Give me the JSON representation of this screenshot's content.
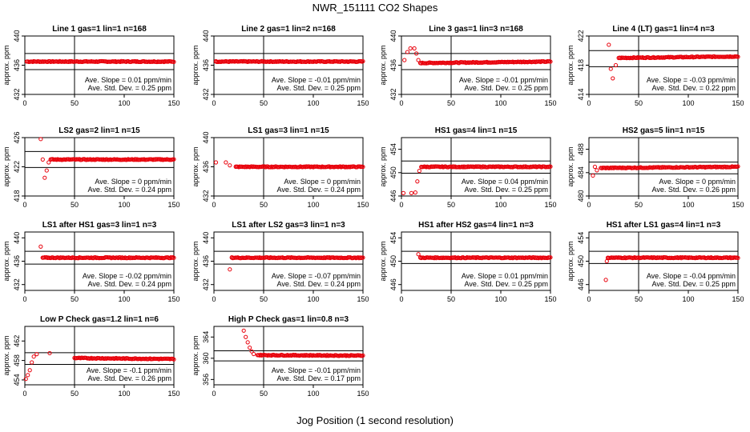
{
  "figure": {
    "title": "NWR_151111  CO2 Shapes",
    "xlabel": "Jog Position (1 second resolution)"
  },
  "colors": {
    "points": "#e8000b",
    "axis": "#000000",
    "background": "#ffffff"
  },
  "chart_data": [
    {
      "type": "scatter",
      "title": "Line 1 gas=1 lin=1 n=168",
      "ylabel": "approx. ppm",
      "xlim": [
        0,
        150
      ],
      "ylim": [
        432,
        440
      ],
      "xticks": [
        0,
        50,
        100,
        150
      ],
      "yticks": [
        432,
        436,
        440
      ],
      "hlines": [
        437.6,
        435.4
      ],
      "vline": 50,
      "slope": "Ave. Slope = 0.01  ppm/min",
      "stddev": "Ave. Std. Dev. = 0.25  ppm",
      "x": [
        2,
        150
      ],
      "y": [
        436.5,
        436.5
      ]
    },
    {
      "type": "scatter",
      "title": "Line 2 gas=1 lin=2 n=168",
      "ylabel": "approx. ppm",
      "xlim": [
        0,
        150
      ],
      "ylim": [
        432,
        440
      ],
      "xticks": [
        0,
        50,
        100,
        150
      ],
      "yticks": [
        432,
        436,
        440
      ],
      "hlines": [
        437.6,
        435.4
      ],
      "vline": 50,
      "slope": "Ave. Slope = -0.01  ppm/min",
      "stddev": "Ave. Std. Dev. = 0.25  ppm",
      "x": [
        2,
        150
      ],
      "y": [
        436.5,
        436.5
      ]
    },
    {
      "type": "scatter",
      "title": "Line 3 gas=1 lin=3 n=168",
      "ylabel": "approx. ppm",
      "xlim": [
        0,
        150
      ],
      "ylim": [
        432,
        440
      ],
      "xticks": [
        0,
        50,
        100,
        150
      ],
      "yticks": [
        432,
        436,
        440
      ],
      "hlines": [
        437.6,
        435.4
      ],
      "vline": 50,
      "slope": "Ave. Slope = -0.01  ppm/min",
      "stddev": "Ave. Std. Dev. = 0.25  ppm",
      "x": [
        3,
        6,
        9,
        13,
        15,
        17,
        19,
        150
      ],
      "y": [
        436.7,
        437.8,
        438.3,
        438.3,
        437.6,
        436.7,
        436.3,
        436.5
      ]
    },
    {
      "type": "scatter",
      "title": "Line 4 (LT) gas=1 lin=4 n=3",
      "ylabel": "approx. ppm",
      "xlim": [
        0,
        150
      ],
      "ylim": [
        414,
        422
      ],
      "xticks": [
        0,
        50,
        100,
        150
      ],
      "yticks": [
        414,
        418,
        422
      ],
      "hlines": [
        420.0,
        417.8
      ],
      "vline": 50,
      "slope": "Ave. Slope = -0.03  ppm/min",
      "stddev": "Ave. Std. Dev. = 0.22  ppm",
      "x": [
        20,
        22,
        24,
        27,
        30,
        150
      ],
      "y": [
        420.8,
        417.5,
        416.2,
        418.0,
        419.0,
        419.2
      ]
    },
    {
      "type": "scatter",
      "title": "LS2 gas=2 lin=1 n=15",
      "ylabel": "approx. ppm",
      "xlim": [
        0,
        150
      ],
      "ylim": [
        418,
        426
      ],
      "xticks": [
        0,
        50,
        100,
        150
      ],
      "yticks": [
        418,
        422,
        426
      ],
      "hlines": [
        424.1,
        421.9
      ],
      "vline": 50,
      "slope": "Ave. Slope = 0  ppm/min",
      "stddev": "Ave. Std. Dev. = 0.24  ppm",
      "x": [
        16,
        18,
        20,
        22,
        24,
        26,
        150
      ],
      "y": [
        425.8,
        423.0,
        420.5,
        421.5,
        422.6,
        423.0,
        423.0
      ]
    },
    {
      "type": "scatter",
      "title": "LS1 gas=3 lin=1 n=15",
      "ylabel": "approx. ppm",
      "xlim": [
        0,
        150
      ],
      "ylim": [
        432,
        440
      ],
      "xticks": [
        0,
        50,
        100,
        150
      ],
      "yticks": [
        432,
        436,
        440
      ],
      "hlines": [],
      "vline": 50,
      "slope": "Ave. Slope = 0  ppm/min",
      "stddev": "Ave. Std. Dev. = 0.24  ppm",
      "x": [
        2,
        12,
        16,
        22,
        150
      ],
      "y": [
        436.6,
        436.6,
        436.2,
        436.0,
        436.0
      ]
    },
    {
      "type": "scatter",
      "title": "HS1 gas=4 lin=1 n=15",
      "ylabel": "approx. ppm",
      "xlim": [
        0,
        150
      ],
      "ylim": [
        446,
        456
      ],
      "xticks": [
        0,
        50,
        100,
        150
      ],
      "yticks": [
        446,
        450,
        454
      ],
      "hlines": [
        452.0,
        449.9
      ],
      "vline": 50,
      "slope": "Ave. Slope = 0.04  ppm/min",
      "stddev": "Ave. Std. Dev. = 0.25  ppm",
      "x": [
        2,
        10,
        14,
        16,
        18,
        20,
        150
      ],
      "y": [
        446.5,
        446.5,
        446.6,
        448.5,
        450.3,
        451.0,
        451.0
      ]
    },
    {
      "type": "scatter",
      "title": "HS2 gas=5 lin=1 n=15",
      "ylabel": "approx. ppm",
      "xlim": [
        0,
        150
      ],
      "ylim": [
        480,
        490
      ],
      "xticks": [
        0,
        50,
        100,
        150
      ],
      "yticks": [
        480,
        484,
        488
      ],
      "hlines": [
        485.8,
        483.8
      ],
      "vline": 50,
      "slope": "Ave. Slope = 0  ppm/min",
      "stddev": "Ave. Std. Dev. = 0.26  ppm",
      "x": [
        4,
        6,
        8,
        12,
        150
      ],
      "y": [
        483.5,
        485.0,
        484.4,
        484.8,
        485.0
      ]
    },
    {
      "type": "scatter",
      "title": "LS1 after HS1 gas=3 lin=1 n=3",
      "ylabel": "approx. ppm",
      "xlim": [
        0,
        150
      ],
      "ylim": [
        431,
        441
      ],
      "xticks": [
        0,
        50,
        100,
        150
      ],
      "yticks": [
        432,
        436,
        440
      ],
      "hlines": [
        437.7,
        435.5
      ],
      "vline": 50,
      "slope": "Ave. Slope = -0.02  ppm/min",
      "stddev": "Ave. Std. Dev. = 0.24  ppm",
      "x": [
        16,
        18,
        150
      ],
      "y": [
        438.5,
        436.6,
        436.6
      ]
    },
    {
      "type": "scatter",
      "title": "LS1 after LS2 gas=3 lin=1 n=3",
      "ylabel": "approx. ppm",
      "xlim": [
        0,
        150
      ],
      "ylim": [
        431,
        441
      ],
      "xticks": [
        0,
        50,
        100,
        150
      ],
      "yticks": [
        432,
        436,
        440
      ],
      "hlines": [
        437.7,
        435.5
      ],
      "vline": 50,
      "slope": "Ave. Slope = -0.07  ppm/min",
      "stddev": "Ave. Std. Dev. = 0.24  ppm",
      "x": [
        16,
        18,
        150
      ],
      "y": [
        434.6,
        436.6,
        436.6
      ]
    },
    {
      "type": "scatter",
      "title": "HS1 after HS2 gas=4 lin=1 n=3",
      "ylabel": "approx. ppm",
      "xlim": [
        0,
        150
      ],
      "ylim": [
        445,
        455
      ],
      "xticks": [
        0,
        50,
        100,
        150
      ],
      "yticks": [
        446,
        450,
        454
      ],
      "hlines": [
        451.7,
        449.6
      ],
      "vline": 50,
      "slope": "Ave. Slope = 0.01  ppm/min",
      "stddev": "Ave. Std. Dev. = 0.25  ppm",
      "x": [
        17,
        19,
        150
      ],
      "y": [
        451.2,
        450.6,
        450.6
      ]
    },
    {
      "type": "scatter",
      "title": "HS1 after LS1 gas=4 lin=1 n=3",
      "ylabel": "approx. ppm",
      "xlim": [
        0,
        150
      ],
      "ylim": [
        445,
        455
      ],
      "xticks": [
        0,
        50,
        100,
        150
      ],
      "yticks": [
        446,
        450,
        454
      ],
      "hlines": [
        451.7,
        449.6
      ],
      "vline": 50,
      "slope": "Ave. Slope = -0.04  ppm/min",
      "stddev": "Ave. Std. Dev. = 0.25  ppm",
      "x": [
        17,
        18,
        19,
        150
      ],
      "y": [
        446.8,
        450.0,
        450.6,
        450.6
      ]
    },
    {
      "type": "scatter",
      "title": "Low P Check gas=1.2 lin=1 n=6",
      "ylabel": "approx. ppm",
      "xlim": [
        0,
        150
      ],
      "ylim": [
        453,
        465
      ],
      "xticks": [
        0,
        50,
        100,
        150
      ],
      "yticks": [
        454,
        458,
        462
      ],
      "hlines": [
        459.6,
        457.2
      ],
      "vline": 50,
      "slope": "Ave. Slope = -0.1  ppm/min",
      "stddev": "Ave. Std. Dev. = 0.26  ppm",
      "x": [
        1,
        3,
        5,
        7,
        9,
        12,
        25,
        50,
        150
      ],
      "y": [
        454.2,
        455.0,
        456.0,
        457.6,
        458.8,
        459.3,
        459.5,
        458.5,
        458.3
      ]
    },
    {
      "type": "scatter",
      "title": "High P Check gas=1 lin=0.8 n=3",
      "ylabel": "approx. ppm",
      "xlim": [
        0,
        150
      ],
      "ylim": [
        355,
        366
      ],
      "xticks": [
        0,
        50,
        100,
        150
      ],
      "yticks": [
        356,
        360,
        364
      ],
      "hlines": [
        361.4,
        359.5
      ],
      "vline": 50,
      "slope": "Ave. Slope = -0.01  ppm/min",
      "stddev": "Ave. Std. Dev. = 0.17  ppm",
      "x": [
        30,
        32,
        34,
        36,
        38,
        40,
        44,
        150
      ],
      "y": [
        365.2,
        364.0,
        363.0,
        362.0,
        361.3,
        360.8,
        360.6,
        360.5
      ]
    }
  ]
}
